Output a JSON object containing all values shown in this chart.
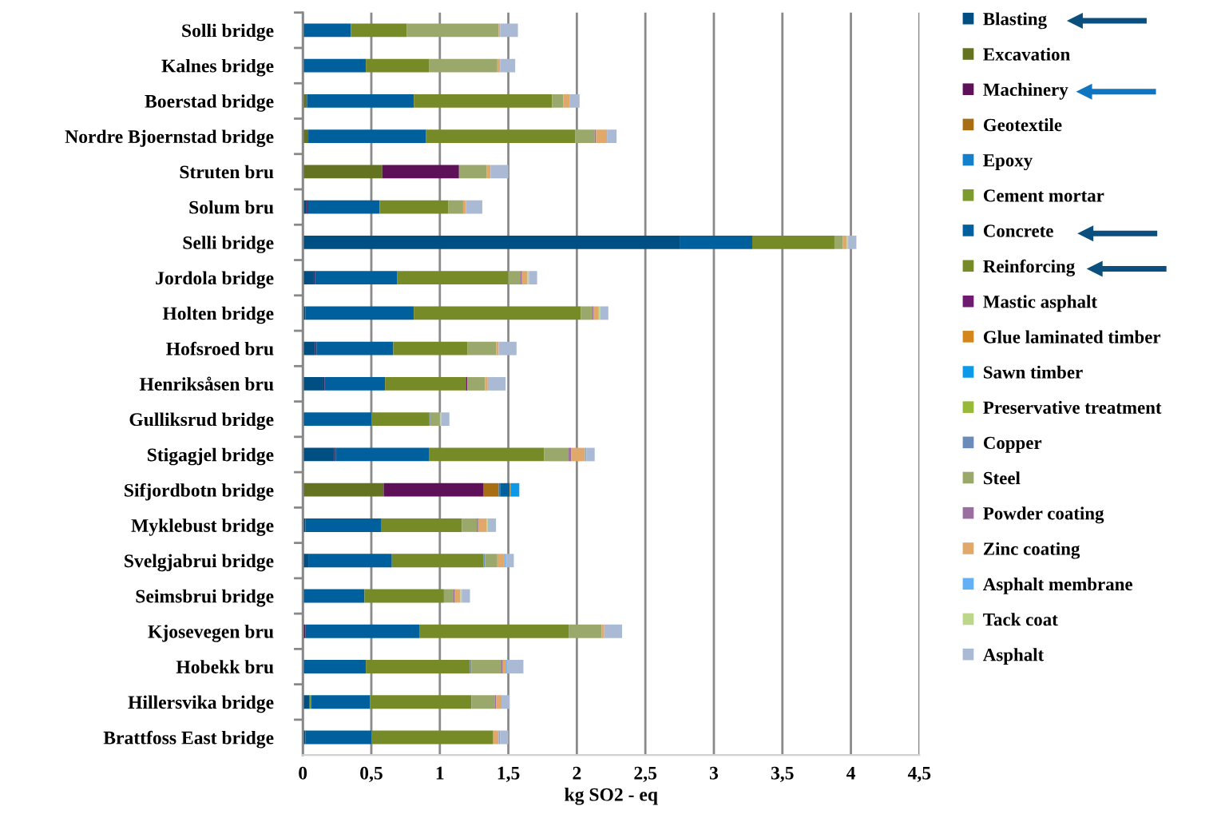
{
  "chart_data": {
    "type": "bar",
    "orientation": "horizontal",
    "stacked": true,
    "xlabel": "kg SO2 - eq",
    "categories": [
      "Solli bridge",
      "Kalnes bridge",
      "Boerstad bridge",
      "Nordre Bjoernstad bridge",
      "Struten bru",
      "Solum bru",
      "Selli bridge",
      "Jordola bridge",
      "Holten bridge",
      "Hofsroed bru",
      "Henriksåsen bru",
      "Gulliksrud bridge",
      "Stigagjel bridge",
      "Sifjordbotn bridge",
      "Myklebust bridge",
      "Svelgjabrui bridge",
      "Seimsbrui bridge",
      "Kjosevegen bru",
      "Hobekk bru",
      "Hillersvika bridge",
      "Brattfoss East bridge"
    ],
    "series": [
      {
        "name": "Blasting",
        "color": "#004f82",
        "values": [
          0,
          0,
          0,
          0,
          0,
          0.03,
          2.75,
          0.08,
          0.02,
          0.09,
          0.15,
          null,
          0.23,
          0,
          0.02,
          0.04,
          0,
          0,
          null,
          0.05,
          0.02
        ]
      },
      {
        "name": "Excavation",
        "color": "#637322",
        "values": [
          null,
          null,
          0.03,
          0.04,
          0.58,
          0,
          0,
          0,
          0,
          0,
          0,
          0,
          0,
          0.59,
          0,
          0,
          0,
          0,
          0,
          0,
          0
        ]
      },
      {
        "name": "Machinery",
        "color": "#5e1158",
        "values": [
          0,
          0,
          0,
          0,
          0.56,
          0.01,
          0,
          0.01,
          0,
          0.01,
          0.01,
          0,
          0.01,
          0.73,
          0,
          0,
          0,
          0.02,
          0,
          0,
          0
        ]
      },
      {
        "name": "Geotextile",
        "color": "#a86e14",
        "values": [
          0,
          0,
          0,
          0,
          0,
          0,
          0,
          0,
          0,
          0,
          0,
          0,
          0,
          0.11,
          0,
          0,
          0,
          0,
          0,
          0,
          0
        ]
      },
      {
        "name": "Epoxy",
        "color": "#1580c9",
        "values": [
          0,
          0,
          0,
          0,
          0,
          0,
          0,
          0,
          0,
          0,
          0,
          0,
          0,
          0.01,
          0,
          0,
          0,
          0,
          0,
          0,
          0
        ]
      },
      {
        "name": "Cement mortar",
        "color": "#7c9a2e",
        "values": [
          0,
          0,
          0,
          0,
          0,
          0,
          0,
          0,
          0,
          0,
          0,
          0,
          0,
          0,
          0,
          0,
          0,
          0,
          0,
          0.01,
          0
        ]
      },
      {
        "name": "Concrete",
        "color": "#00609e",
        "values": [
          0.35,
          0.46,
          0.78,
          0.86,
          0,
          0.52,
          0.53,
          0.6,
          0.79,
          0.56,
          0.44,
          0.5,
          0.68,
          0.07,
          0.55,
          0.61,
          0.45,
          0.83,
          0.46,
          0.43,
          0.48
        ]
      },
      {
        "name": "Reinforcing",
        "color": "#778a28",
        "values": [
          0.41,
          0.46,
          1.01,
          1.09,
          0,
          0.5,
          0.6,
          0.81,
          1.22,
          0.54,
          0.59,
          0.42,
          0.84,
          0,
          0.59,
          0.67,
          0.58,
          1.09,
          0.76,
          0.74,
          0.89
        ]
      },
      {
        "name": "Mastic asphalt",
        "color": "#6e1a6e",
        "values": [
          0,
          0,
          0,
          0,
          0,
          0,
          0,
          0,
          0,
          0,
          0.01,
          0,
          0,
          0,
          0,
          0,
          0,
          0,
          0,
          0,
          0
        ]
      },
      {
        "name": "Glue laminated timber",
        "color": "#d4861a",
        "values": [
          0,
          0,
          0,
          0,
          0,
          0,
          0,
          0,
          0,
          0,
          0,
          0,
          0,
          0.01,
          0,
          0,
          0,
          0,
          0,
          0,
          0
        ]
      },
      {
        "name": "Sawn timber",
        "color": "#0c9ae8",
        "values": [
          0,
          0,
          0,
          0,
          0,
          0,
          0,
          0,
          0,
          0,
          0,
          0,
          0,
          0.06,
          0,
          0,
          0,
          0,
          0,
          0,
          0
        ]
      },
      {
        "name": "Preservative treatment",
        "color": "#98b83a",
        "values": [
          0,
          0,
          0,
          0,
          0,
          0,
          0,
          0,
          0,
          0,
          0,
          0,
          0,
          0,
          0,
          0,
          0,
          0,
          0,
          0,
          0
        ]
      },
      {
        "name": "Copper",
        "color": "#6b8cb8",
        "values": [
          0,
          0,
          0,
          0,
          0,
          0,
          0,
          0,
          0,
          0,
          0,
          0.01,
          0,
          0,
          0,
          0.01,
          0,
          0,
          0.01,
          0,
          0
        ]
      },
      {
        "name": "Steel",
        "color": "#9aa86c",
        "values": [
          0.67,
          0.5,
          0.08,
          0.14,
          0.2,
          0.11,
          0.06,
          0.09,
          0.08,
          0.21,
          0.13,
          0.07,
          0.18,
          0,
          0.11,
          0.09,
          0.07,
          0.24,
          0.22,
          0.17,
          0
        ]
      },
      {
        "name": "Powder coating",
        "color": "#9b6ea0",
        "values": [
          0,
          0,
          0,
          0.01,
          0,
          0,
          0,
          0.01,
          0.01,
          0,
          0,
          0,
          0.02,
          0,
          0.01,
          0,
          0.01,
          0,
          0.01,
          0.01,
          0
        ]
      },
      {
        "name": "Zinc coating",
        "color": "#e0a86a",
        "values": [
          0.01,
          0.02,
          0.05,
          0.08,
          0.03,
          0.02,
          0.03,
          0.04,
          0.04,
          0.02,
          0.02,
          0,
          0.1,
          0,
          0.06,
          0.05,
          0.04,
          0.02,
          0.02,
          0.04,
          0.04
        ]
      },
      {
        "name": "Asphalt membrane",
        "color": "#64b0f5",
        "values": [
          0,
          0,
          0,
          0,
          0,
          0,
          0,
          0,
          0,
          0,
          0,
          0,
          0.01,
          0,
          0,
          0.01,
          0,
          0,
          0.01,
          0,
          0.01
        ]
      },
      {
        "name": "Tack coat",
        "color": "#bcd68c",
        "values": [
          0,
          0,
          0,
          0,
          0,
          0,
          0.01,
          0.01,
          0.01,
          0,
          0,
          0.01,
          0,
          0,
          0.01,
          0,
          0.01,
          0,
          0,
          0,
          0
        ]
      },
      {
        "name": "Asphalt",
        "color": "#abbad4",
        "values": [
          0.13,
          0.11,
          0.07,
          0.07,
          0.13,
          0.12,
          0.06,
          0.06,
          0.06,
          0.13,
          0.13,
          0.06,
          0.06,
          0,
          0.06,
          0.06,
          0.06,
          0.13,
          0.12,
          0.06,
          0.06
        ]
      }
    ],
    "xlim": [
      0,
      4.5
    ],
    "xticks": [
      0,
      {
        "value": 0.5,
        "label": "0,5"
      },
      1,
      {
        "value": 1.5,
        "label": "1,5"
      },
      2,
      {
        "value": 2.5,
        "label": "2,5"
      },
      3,
      {
        "value": 3.5,
        "label": "3,5"
      },
      4,
      {
        "value": 4.5,
        "label": "4,5"
      }
    ],
    "grid": "x",
    "legend": "right"
  }
}
